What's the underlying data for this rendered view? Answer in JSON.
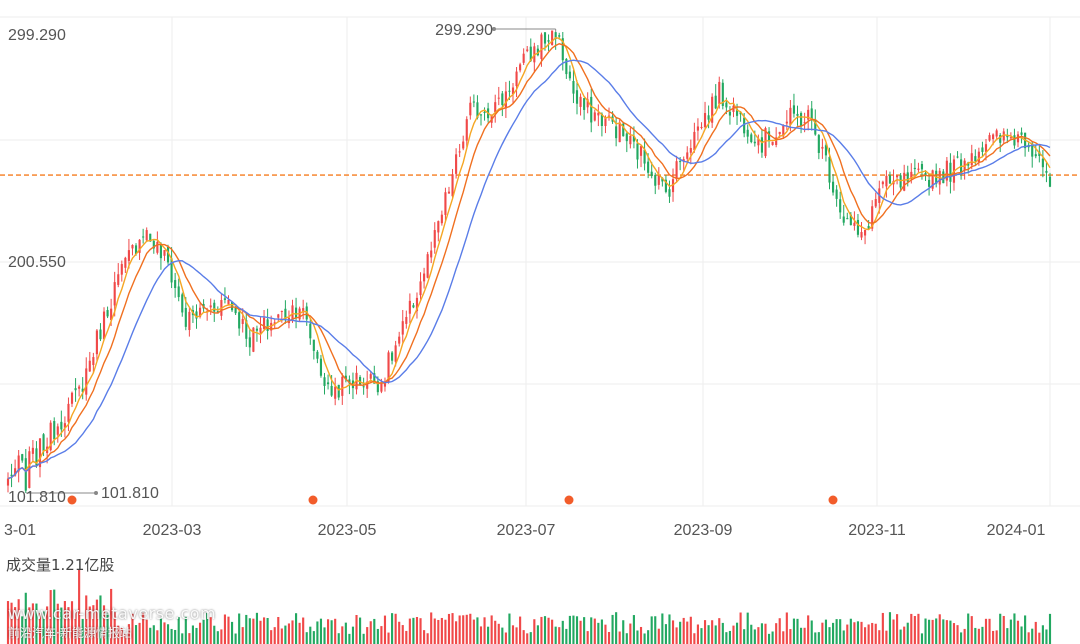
{
  "chart_data": {
    "type": "candlestick",
    "y_labels": [
      "299.290",
      "200.550"
    ],
    "x_ticks": [
      "3-01",
      "2023-03",
      "2023-05",
      "2023-07",
      "2023-09",
      "2023-11",
      "2024-01"
    ],
    "max_label": "299.290",
    "min_label": "101.810",
    "min_label_left": "101.810",
    "reference_line": 238,
    "volume_title": "成交量1.21亿股",
    "colors": {
      "up": "#f04848",
      "down": "#22a861",
      "ma5": "#f5a623",
      "ma10": "#f07020",
      "ma20": "#5a7de8",
      "reference": "#f57c1f",
      "event_dot": "#f25c2a",
      "grid": "#eeeeee"
    },
    "ohlc_anchors": [
      [
        0,
        110
      ],
      [
        8,
        118
      ],
      [
        20,
        145
      ],
      [
        30,
        190
      ],
      [
        38,
        215
      ],
      [
        45,
        200
      ],
      [
        50,
        175
      ],
      [
        55,
        180
      ],
      [
        62,
        185
      ],
      [
        68,
        168
      ],
      [
        75,
        176
      ],
      [
        82,
        183
      ],
      [
        90,
        145
      ],
      [
        97,
        150
      ],
      [
        105,
        150
      ],
      [
        112,
        175
      ],
      [
        120,
        210
      ],
      [
        130,
        265
      ],
      [
        138,
        268
      ],
      [
        144,
        284
      ],
      [
        150,
        295
      ],
      [
        154,
        299
      ],
      [
        160,
        268
      ],
      [
        170,
        260
      ],
      [
        180,
        243
      ],
      [
        185,
        230
      ],
      [
        190,
        248
      ],
      [
        200,
        273
      ],
      [
        205,
        264
      ],
      [
        212,
        252
      ],
      [
        220,
        262
      ],
      [
        225,
        263
      ],
      [
        230,
        244
      ],
      [
        235,
        220
      ],
      [
        240,
        210
      ],
      [
        245,
        232
      ],
      [
        255,
        236
      ],
      [
        265,
        240
      ],
      [
        275,
        252
      ],
      [
        285,
        255
      ],
      [
        290,
        248
      ],
      [
        293,
        234
      ]
    ]
  },
  "watermark": {
    "line1": "www.car-metaverse.com",
    "line2": "前沿汽车·新能源情报站"
  }
}
